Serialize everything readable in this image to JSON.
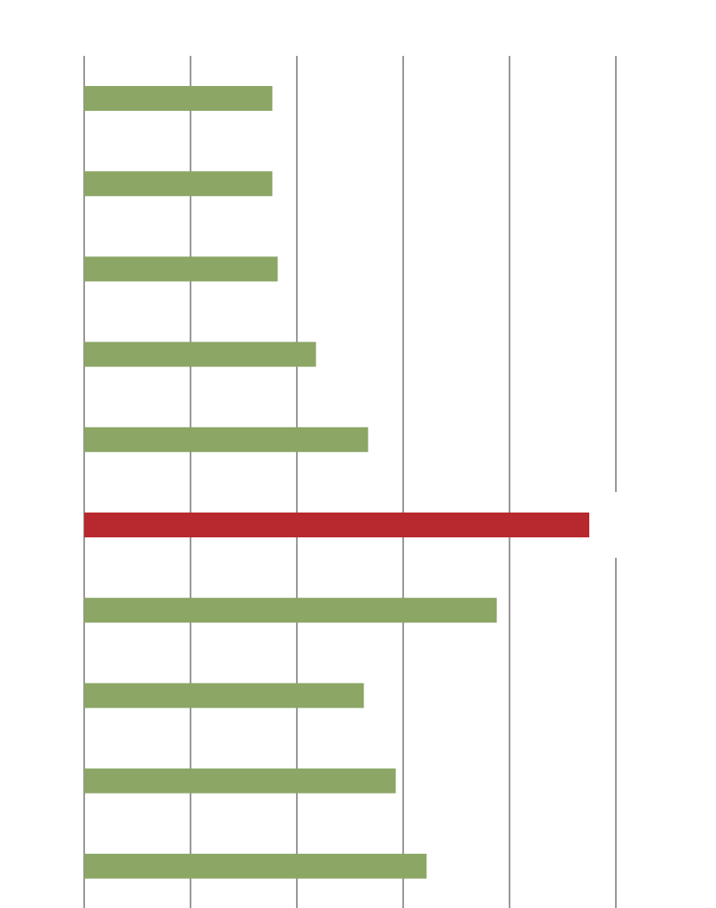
{
  "chart_data": {
    "type": "bar",
    "orientation": "horizontal",
    "title": "",
    "xlabel": "",
    "ylabel": "",
    "xlim": [
      0,
      5
    ],
    "grid": true,
    "gridline_count": 6,
    "categories": [
      "",
      "",
      "",
      "",
      "",
      "",
      "",
      "",
      "",
      ""
    ],
    "values": [
      1.77,
      1.77,
      1.82,
      2.18,
      2.67,
      4.75,
      3.88,
      2.63,
      2.93,
      3.22
    ],
    "highlight_index": 5,
    "colors": {
      "bar": "#8ba665",
      "highlight": "#b8292f",
      "grid": "#999999"
    }
  }
}
